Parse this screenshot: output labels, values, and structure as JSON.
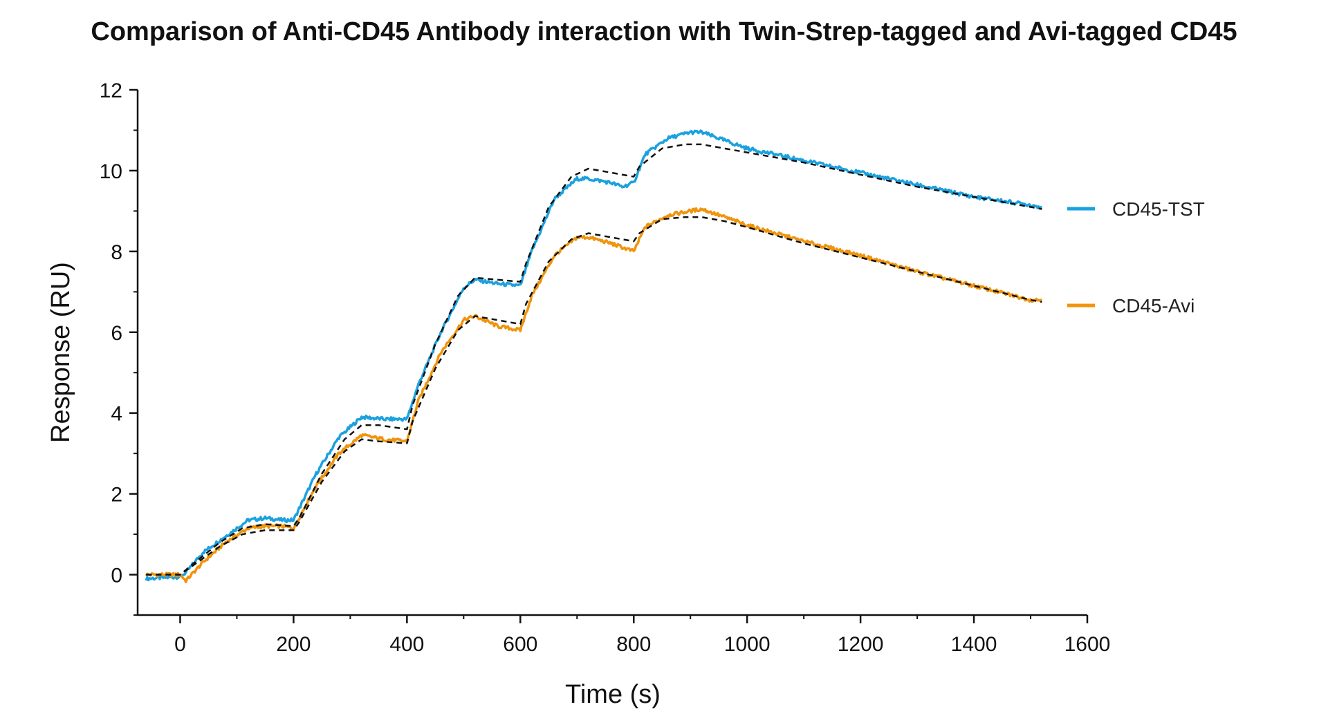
{
  "chart_data": {
    "type": "line",
    "title": "Comparison of Anti-CD45 Antibody interaction with Twin-Strep-tagged and Avi-tagged CD45",
    "xlabel": "Time (s)",
    "ylabel": "Response (RU)",
    "xlim": [
      -75,
      1600
    ],
    "ylim": [
      -1,
      12
    ],
    "xticks": [
      0,
      200,
      400,
      600,
      800,
      1000,
      1200,
      1400,
      1600
    ],
    "yticks": [
      0,
      2,
      4,
      6,
      8,
      10,
      12
    ],
    "xtick_labels": [
      "0",
      "200",
      "400",
      "600",
      "800",
      "1000",
      "1200",
      "1400",
      "1600"
    ],
    "ytick_labels": [
      "0",
      "2",
      "4",
      "6",
      "8",
      "10",
      "12"
    ],
    "grid": false,
    "legend": "right",
    "series": [
      {
        "name": "CD45-TST",
        "color": "#1ba1df",
        "x": [
          -60,
          0,
          10,
          40,
          80,
          120,
          150,
          180,
          200,
          240,
          280,
          320,
          360,
          400,
          420,
          460,
          500,
          520,
          560,
          600,
          620,
          660,
          700,
          720,
          760,
          780,
          800,
          820,
          860,
          900,
          920,
          960,
          1000,
          1100,
          1200,
          1300,
          1400,
          1500,
          1520
        ],
        "y": [
          -0.1,
          -0.05,
          0.05,
          0.55,
          0.95,
          1.35,
          1.4,
          1.35,
          1.35,
          2.5,
          3.4,
          3.9,
          3.85,
          3.85,
          4.7,
          6.0,
          7.1,
          7.3,
          7.2,
          7.15,
          8.0,
          9.3,
          9.8,
          9.8,
          9.7,
          9.6,
          9.7,
          10.4,
          10.8,
          10.95,
          10.95,
          10.75,
          10.55,
          10.25,
          9.95,
          9.65,
          9.35,
          9.15,
          9.1
        ]
      },
      {
        "name": "CD45-Avi",
        "color": "#f0940c",
        "x": [
          -60,
          0,
          10,
          40,
          80,
          120,
          150,
          180,
          200,
          240,
          280,
          320,
          360,
          400,
          420,
          460,
          500,
          520,
          560,
          600,
          620,
          660,
          700,
          720,
          760,
          780,
          800,
          820,
          860,
          900,
          920,
          960,
          1000,
          1100,
          1200,
          1300,
          1400,
          1500,
          1520
        ],
        "y": [
          0.0,
          0.0,
          -0.15,
          0.3,
          0.8,
          1.15,
          1.2,
          1.2,
          1.15,
          2.2,
          3.0,
          3.45,
          3.35,
          3.3,
          4.3,
          5.5,
          6.3,
          6.4,
          6.15,
          6.05,
          6.9,
          7.9,
          8.35,
          8.35,
          8.2,
          8.1,
          8.0,
          8.6,
          8.9,
          9.0,
          9.05,
          8.85,
          8.65,
          8.25,
          7.9,
          7.5,
          7.15,
          6.8,
          6.8
        ]
      },
      {
        "name": "",
        "style": "dashed",
        "color": "#111111",
        "x": [
          -60,
          0,
          30,
          70,
          110,
          150,
          200,
          210,
          250,
          290,
          320,
          350,
          400,
          410,
          450,
          490,
          520,
          560,
          600,
          610,
          650,
          690,
          720,
          760,
          800,
          810,
          850,
          890,
          920,
          960,
          1000,
          1100,
          1200,
          1300,
          1400,
          1500,
          1520
        ],
        "y": [
          0.0,
          0.0,
          0.35,
          0.8,
          1.15,
          1.25,
          1.2,
          1.4,
          2.5,
          3.35,
          3.7,
          3.7,
          3.6,
          4.2,
          5.7,
          6.9,
          7.35,
          7.3,
          7.25,
          7.7,
          9.1,
          9.85,
          10.05,
          9.95,
          9.85,
          10.1,
          10.55,
          10.65,
          10.65,
          10.55,
          10.45,
          10.2,
          9.9,
          9.6,
          9.35,
          9.1,
          9.05
        ]
      },
      {
        "name": "",
        "style": "dashed",
        "color": "#111111",
        "x": [
          -60,
          0,
          30,
          70,
          110,
          150,
          200,
          210,
          250,
          290,
          320,
          350,
          400,
          410,
          450,
          490,
          520,
          560,
          600,
          610,
          650,
          690,
          720,
          760,
          800,
          810,
          850,
          890,
          920,
          960,
          1000,
          1100,
          1200,
          1300,
          1400,
          1500,
          1520
        ],
        "y": [
          0.0,
          0.0,
          0.3,
          0.7,
          1.0,
          1.1,
          1.1,
          1.3,
          2.3,
          3.05,
          3.35,
          3.3,
          3.25,
          3.8,
          5.1,
          6.05,
          6.4,
          6.3,
          6.2,
          6.7,
          7.75,
          8.3,
          8.45,
          8.35,
          8.25,
          8.45,
          8.8,
          8.85,
          8.85,
          8.75,
          8.6,
          8.2,
          7.85,
          7.5,
          7.15,
          6.8,
          6.75
        ]
      }
    ]
  }
}
